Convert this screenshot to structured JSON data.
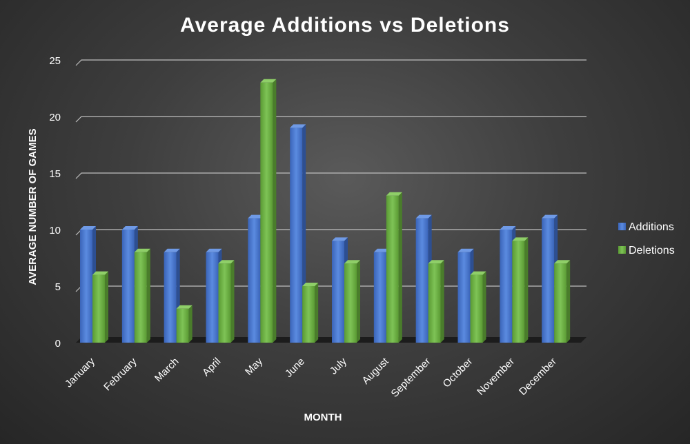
{
  "chart_data": {
    "type": "bar",
    "title": "Average Additions vs Deletions",
    "xlabel": "MONTH",
    "ylabel": "AVERAGE NUMBER OF GAMES",
    "categories": [
      "January",
      "February",
      "March",
      "April",
      "May",
      "June",
      "July",
      "August",
      "September",
      "October",
      "November",
      "December"
    ],
    "series": [
      {
        "name": "Additions",
        "values": [
          10,
          10,
          8,
          8,
          11,
          19,
          9,
          8,
          11,
          8,
          10,
          11
        ],
        "color": "#4472c4"
      },
      {
        "name": "Deletions",
        "values": [
          6,
          8,
          3,
          7,
          23,
          5,
          7,
          13,
          7,
          6,
          9,
          7
        ],
        "color": "#70ad47"
      }
    ],
    "ylim": [
      0,
      25
    ],
    "yticks": [
      "0",
      "5",
      "10",
      "15",
      "20",
      "25"
    ],
    "grid": true,
    "legend_position": "right"
  }
}
